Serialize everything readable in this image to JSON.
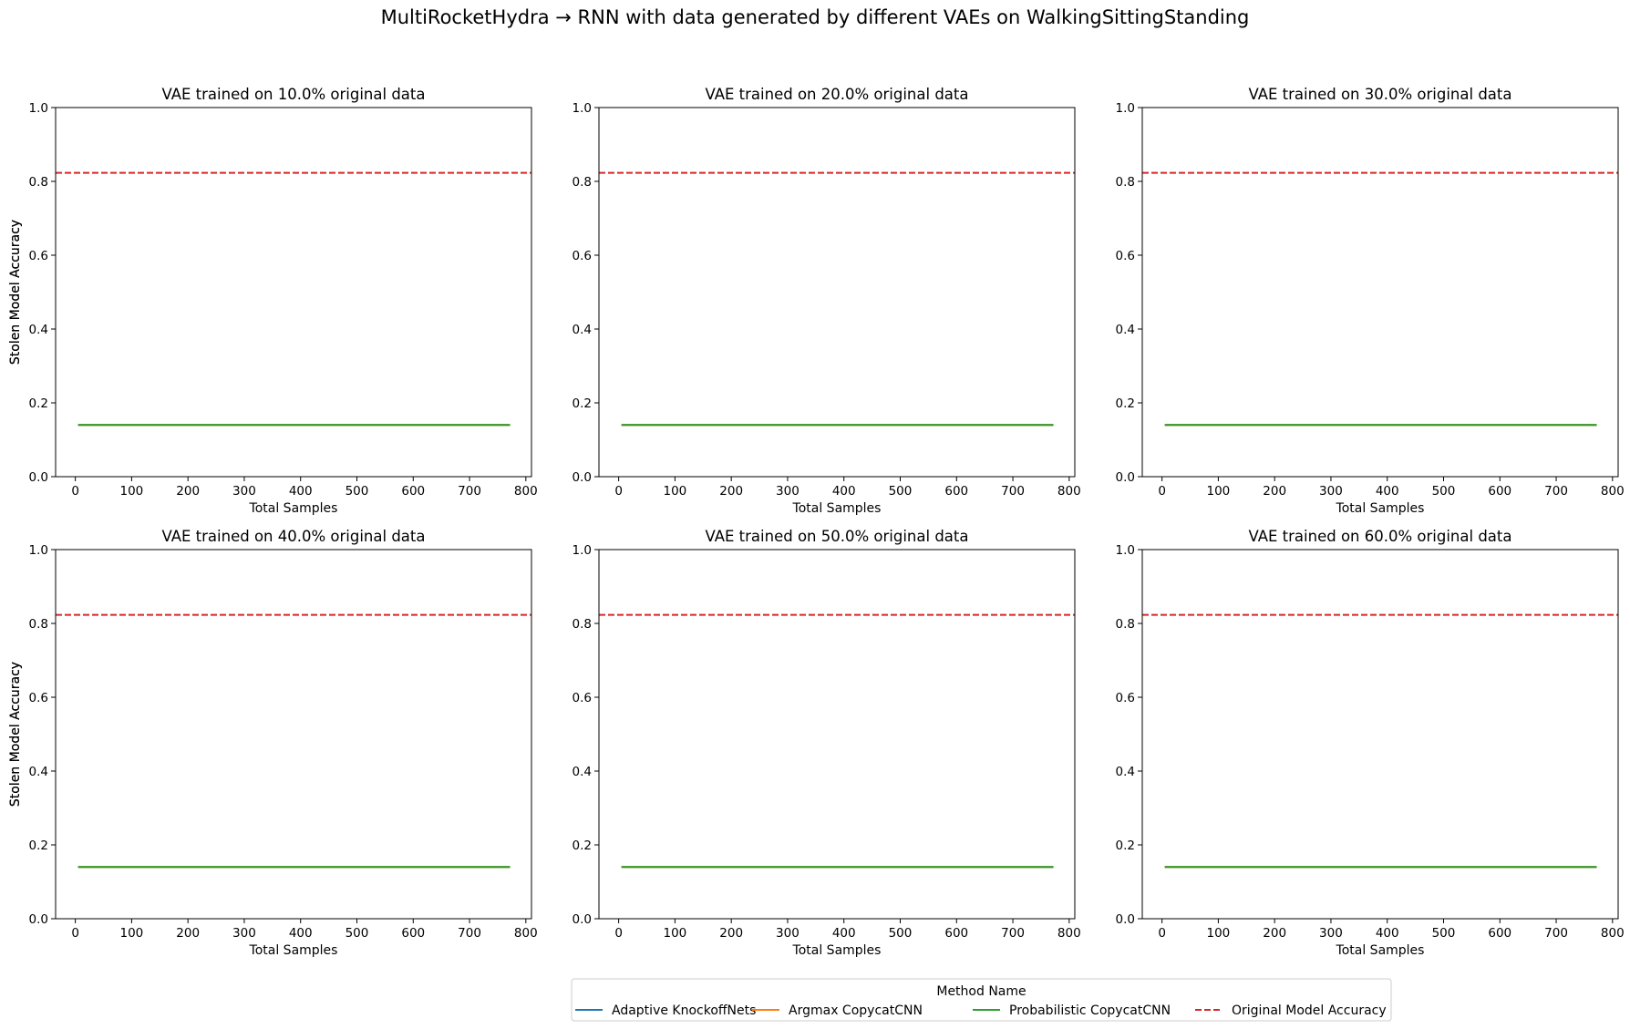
{
  "figure": {
    "suptitle": "MultiRocketHydra → RNN with data generated by different VAEs on WalkingSittingStanding"
  },
  "legend": {
    "title": "Method Name",
    "placement": "bottom-center",
    "entries": [
      {
        "label": "Adaptive KnockoffNets",
        "color": "#1f77b4",
        "style": "solid"
      },
      {
        "label": "Argmax CopycatCNN",
        "color": "#ff7f0e",
        "style": "solid"
      },
      {
        "label": "Probabilistic CopycatCNN",
        "color": "#2ca02c",
        "style": "solid"
      },
      {
        "label": "Original Model Accuracy",
        "color": "#d62728",
        "style": "dashed"
      }
    ]
  },
  "chart_data": [
    {
      "type": "line",
      "title": "VAE trained on 10.0% original data",
      "xlabel": "Total Samples",
      "ylabel": "Stolen Model Accuracy",
      "xlim": [
        -35,
        810
      ],
      "ylim": [
        0,
        1
      ],
      "xticks": [
        0,
        100,
        200,
        300,
        400,
        500,
        600,
        700,
        800
      ],
      "yticks": [
        0.0,
        0.2,
        0.4,
        0.6,
        0.8,
        1.0
      ],
      "series": [
        {
          "name": "Adaptive KnockoffNets",
          "color": "#1f77b4",
          "x": [
            5,
            772
          ],
          "y": [
            0.14,
            0.14
          ]
        },
        {
          "name": "Argmax CopycatCNN",
          "color": "#ff7f0e",
          "x": [
            5,
            772
          ],
          "y": [
            0.14,
            0.14
          ]
        },
        {
          "name": "Probabilistic CopycatCNN",
          "color": "#2ca02c",
          "x": [
            5,
            772
          ],
          "y": [
            0.14,
            0.14
          ]
        }
      ],
      "hlines": [
        {
          "name": "Original Model Accuracy",
          "color": "#d62728",
          "y": 0.823,
          "style": "dashed"
        }
      ]
    },
    {
      "type": "line",
      "title": "VAE trained on 20.0% original data",
      "xlabel": "Total Samples",
      "ylabel": "Stolen Model Accuracy",
      "xlim": [
        -35,
        810
      ],
      "ylim": [
        0,
        1
      ],
      "xticks": [
        0,
        100,
        200,
        300,
        400,
        500,
        600,
        700,
        800
      ],
      "yticks": [
        0.0,
        0.2,
        0.4,
        0.6,
        0.8,
        1.0
      ],
      "series": [
        {
          "name": "Adaptive KnockoffNets",
          "color": "#1f77b4",
          "x": [
            5,
            772
          ],
          "y": [
            0.14,
            0.14
          ]
        },
        {
          "name": "Argmax CopycatCNN",
          "color": "#ff7f0e",
          "x": [
            5,
            772
          ],
          "y": [
            0.14,
            0.14
          ]
        },
        {
          "name": "Probabilistic CopycatCNN",
          "color": "#2ca02c",
          "x": [
            5,
            772
          ],
          "y": [
            0.14,
            0.14
          ]
        }
      ],
      "hlines": [
        {
          "name": "Original Model Accuracy",
          "color": "#d62728",
          "y": 0.823,
          "style": "dashed"
        }
      ]
    },
    {
      "type": "line",
      "title": "VAE trained on 30.0% original data",
      "xlabel": "Total Samples",
      "ylabel": "Stolen Model Accuracy",
      "xlim": [
        -35,
        810
      ],
      "ylim": [
        0,
        1
      ],
      "xticks": [
        0,
        100,
        200,
        300,
        400,
        500,
        600,
        700,
        800
      ],
      "yticks": [
        0.0,
        0.2,
        0.4,
        0.6,
        0.8,
        1.0
      ],
      "series": [
        {
          "name": "Adaptive KnockoffNets",
          "color": "#1f77b4",
          "x": [
            5,
            772
          ],
          "y": [
            0.14,
            0.14
          ]
        },
        {
          "name": "Argmax CopycatCNN",
          "color": "#ff7f0e",
          "x": [
            5,
            772
          ],
          "y": [
            0.14,
            0.14
          ]
        },
        {
          "name": "Probabilistic CopycatCNN",
          "color": "#2ca02c",
          "x": [
            5,
            772
          ],
          "y": [
            0.14,
            0.14
          ]
        }
      ],
      "hlines": [
        {
          "name": "Original Model Accuracy",
          "color": "#d62728",
          "y": 0.823,
          "style": "dashed"
        }
      ]
    },
    {
      "type": "line",
      "title": "VAE trained on 40.0% original data",
      "xlabel": "Total Samples",
      "ylabel": "Stolen Model Accuracy",
      "xlim": [
        -35,
        810
      ],
      "ylim": [
        0,
        1
      ],
      "xticks": [
        0,
        100,
        200,
        300,
        400,
        500,
        600,
        700,
        800
      ],
      "yticks": [
        0.0,
        0.2,
        0.4,
        0.6,
        0.8,
        1.0
      ],
      "series": [
        {
          "name": "Adaptive KnockoffNets",
          "color": "#1f77b4",
          "x": [
            5,
            772
          ],
          "y": [
            0.14,
            0.14
          ]
        },
        {
          "name": "Argmax CopycatCNN",
          "color": "#ff7f0e",
          "x": [
            5,
            772
          ],
          "y": [
            0.14,
            0.14
          ]
        },
        {
          "name": "Probabilistic CopycatCNN",
          "color": "#2ca02c",
          "x": [
            5,
            772
          ],
          "y": [
            0.14,
            0.14
          ]
        }
      ],
      "hlines": [
        {
          "name": "Original Model Accuracy",
          "color": "#d62728",
          "y": 0.823,
          "style": "dashed"
        }
      ]
    },
    {
      "type": "line",
      "title": "VAE trained on 50.0% original data",
      "xlabel": "Total Samples",
      "ylabel": "Stolen Model Accuracy",
      "xlim": [
        -35,
        810
      ],
      "ylim": [
        0,
        1
      ],
      "xticks": [
        0,
        100,
        200,
        300,
        400,
        500,
        600,
        700,
        800
      ],
      "yticks": [
        0.0,
        0.2,
        0.4,
        0.6,
        0.8,
        1.0
      ],
      "series": [
        {
          "name": "Adaptive KnockoffNets",
          "color": "#1f77b4",
          "x": [
            5,
            772
          ],
          "y": [
            0.14,
            0.14
          ]
        },
        {
          "name": "Argmax CopycatCNN",
          "color": "#ff7f0e",
          "x": [
            5,
            772
          ],
          "y": [
            0.14,
            0.14
          ]
        },
        {
          "name": "Probabilistic CopycatCNN",
          "color": "#2ca02c",
          "x": [
            5,
            772
          ],
          "y": [
            0.14,
            0.14
          ]
        }
      ],
      "hlines": [
        {
          "name": "Original Model Accuracy",
          "color": "#d62728",
          "y": 0.823,
          "style": "dashed"
        }
      ]
    },
    {
      "type": "line",
      "title": "VAE trained on 60.0% original data",
      "xlabel": "Total Samples",
      "ylabel": "Stolen Model Accuracy",
      "xlim": [
        -35,
        810
      ],
      "ylim": [
        0,
        1
      ],
      "xticks": [
        0,
        100,
        200,
        300,
        400,
        500,
        600,
        700,
        800
      ],
      "yticks": [
        0.0,
        0.2,
        0.4,
        0.6,
        0.8,
        1.0
      ],
      "series": [
        {
          "name": "Adaptive KnockoffNets",
          "color": "#1f77b4",
          "x": [
            5,
            772
          ],
          "y": [
            0.14,
            0.14
          ]
        },
        {
          "name": "Argmax CopycatCNN",
          "color": "#ff7f0e",
          "x": [
            5,
            772
          ],
          "y": [
            0.14,
            0.14
          ]
        },
        {
          "name": "Probabilistic CopycatCNN",
          "color": "#2ca02c",
          "x": [
            5,
            772
          ],
          "y": [
            0.14,
            0.14
          ]
        }
      ],
      "hlines": [
        {
          "name": "Original Model Accuracy",
          "color": "#d62728",
          "y": 0.823,
          "style": "dashed"
        }
      ]
    }
  ]
}
